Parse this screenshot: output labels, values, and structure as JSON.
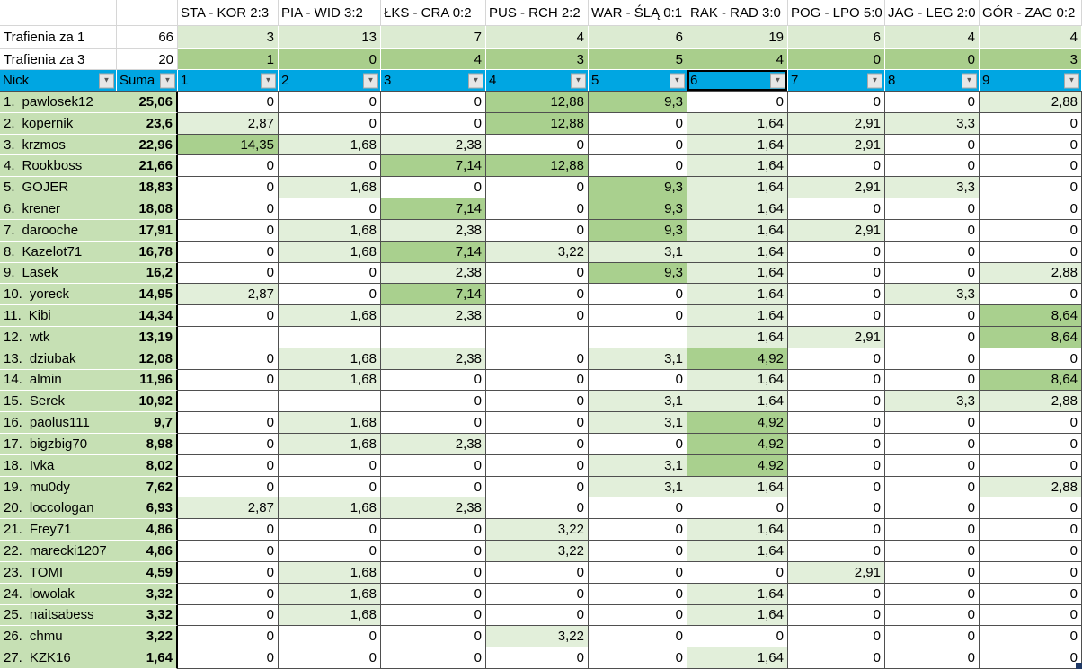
{
  "summary": {
    "hits1_label": "Trafienia za 1",
    "hits1_total": "66",
    "hits3_label": "Trafienia za 3",
    "hits3_total": "20"
  },
  "matches": [
    {
      "label": "STA - KOR 2:3",
      "hits1": "3",
      "hits3": "1"
    },
    {
      "label": "PIA - WID 3:2",
      "hits1": "13",
      "hits3": "0"
    },
    {
      "label": "ŁKS - CRA 0:2",
      "hits1": "7",
      "hits3": "4"
    },
    {
      "label": "PUS - RCH 2:2",
      "hits1": "4",
      "hits3": "3"
    },
    {
      "label": "WAR - ŚLĄ 0:1",
      "hits1": "6",
      "hits3": "5"
    },
    {
      "label": "RAK - RAD 3:0",
      "hits1": "19",
      "hits3": "4"
    },
    {
      "label": "POG - LPO 5:0",
      "hits1": "6",
      "hits3": "0"
    },
    {
      "label": "JAG - LEG 2:0",
      "hits1": "4",
      "hits3": "0"
    },
    {
      "label": "GÓR - ZAG 0:2",
      "hits1": "4",
      "hits3": "3"
    }
  ],
  "filter": {
    "nick_label": "Nick",
    "suma_label": "Suma",
    "columns": [
      "1",
      "2",
      "3",
      "4",
      "5",
      "6",
      "7",
      "8",
      "9"
    ],
    "selected_column": "6",
    "dropdown_glyph": "▼"
  },
  "players": [
    {
      "rank": "1.",
      "nick": "pawlosek12",
      "suma": "25,06",
      "scores": [
        "0",
        "0",
        "0",
        "12,88",
        "9,3",
        "0",
        "0",
        "0",
        "2,88"
      ]
    },
    {
      "rank": "2.",
      "nick": "kopernik",
      "suma": "23,6",
      "scores": [
        "2,87",
        "0",
        "0",
        "12,88",
        "0",
        "1,64",
        "2,91",
        "3,3",
        "0"
      ]
    },
    {
      "rank": "3.",
      "nick": "krzmos",
      "suma": "22,96",
      "scores": [
        "14,35",
        "1,68",
        "2,38",
        "0",
        "0",
        "1,64",
        "2,91",
        "0",
        "0"
      ]
    },
    {
      "rank": "4.",
      "nick": "Rookboss",
      "suma": "21,66",
      "scores": [
        "0",
        "0",
        "7,14",
        "12,88",
        "0",
        "1,64",
        "0",
        "0",
        "0"
      ]
    },
    {
      "rank": "5.",
      "nick": "GOJER",
      "suma": "18,83",
      "scores": [
        "0",
        "1,68",
        "0",
        "0",
        "9,3",
        "1,64",
        "2,91",
        "3,3",
        "0"
      ]
    },
    {
      "rank": "6.",
      "nick": "krener",
      "suma": "18,08",
      "scores": [
        "0",
        "0",
        "7,14",
        "0",
        "9,3",
        "1,64",
        "0",
        "0",
        "0"
      ]
    },
    {
      "rank": "7.",
      "nick": "darooche",
      "suma": "17,91",
      "scores": [
        "0",
        "1,68",
        "2,38",
        "0",
        "9,3",
        "1,64",
        "2,91",
        "0",
        "0"
      ]
    },
    {
      "rank": "8.",
      "nick": "Kazelot71",
      "suma": "16,78",
      "scores": [
        "0",
        "1,68",
        "7,14",
        "3,22",
        "3,1",
        "1,64",
        "0",
        "0",
        "0"
      ]
    },
    {
      "rank": "9.",
      "nick": "Lasek",
      "suma": "16,2",
      "scores": [
        "0",
        "0",
        "2,38",
        "0",
        "9,3",
        "1,64",
        "0",
        "0",
        "2,88"
      ]
    },
    {
      "rank": "10.",
      "nick": "yoreck",
      "suma": "14,95",
      "scores": [
        "2,87",
        "0",
        "7,14",
        "0",
        "0",
        "1,64",
        "0",
        "3,3",
        "0"
      ]
    },
    {
      "rank": "11.",
      "nick": "Kibi",
      "suma": "14,34",
      "scores": [
        "0",
        "1,68",
        "2,38",
        "0",
        "0",
        "1,64",
        "0",
        "0",
        "8,64"
      ]
    },
    {
      "rank": "12.",
      "nick": "wtk",
      "suma": "13,19",
      "scores": [
        "",
        "",
        "",
        "",
        "",
        "1,64",
        "2,91",
        "0",
        "8,64"
      ]
    },
    {
      "rank": "13.",
      "nick": "dziubak",
      "suma": "12,08",
      "scores": [
        "0",
        "1,68",
        "2,38",
        "0",
        "3,1",
        "4,92",
        "0",
        "0",
        "0"
      ]
    },
    {
      "rank": "14.",
      "nick": "almin",
      "suma": "11,96",
      "scores": [
        "0",
        "1,68",
        "0",
        "0",
        "0",
        "1,64",
        "0",
        "0",
        "8,64"
      ]
    },
    {
      "rank": "15.",
      "nick": "Serek",
      "suma": "10,92",
      "scores": [
        "",
        "",
        "0",
        "0",
        "3,1",
        "1,64",
        "0",
        "3,3",
        "2,88"
      ]
    },
    {
      "rank": "16.",
      "nick": "paolus111",
      "suma": "9,7",
      "scores": [
        "0",
        "1,68",
        "0",
        "0",
        "3,1",
        "4,92",
        "0",
        "0",
        "0"
      ]
    },
    {
      "rank": "17.",
      "nick": "bigzbig70",
      "suma": "8,98",
      "scores": [
        "0",
        "1,68",
        "2,38",
        "0",
        "0",
        "4,92",
        "0",
        "0",
        "0"
      ]
    },
    {
      "rank": "18.",
      "nick": "Ivka",
      "suma": "8,02",
      "scores": [
        "0",
        "0",
        "0",
        "0",
        "3,1",
        "4,92",
        "0",
        "0",
        "0"
      ]
    },
    {
      "rank": "19.",
      "nick": "mu0dy",
      "suma": "7,62",
      "scores": [
        "0",
        "0",
        "0",
        "0",
        "3,1",
        "1,64",
        "0",
        "0",
        "2,88"
      ]
    },
    {
      "rank": "20.",
      "nick": "loccologan",
      "suma": "6,93",
      "scores": [
        "2,87",
        "1,68",
        "2,38",
        "0",
        "0",
        "0",
        "0",
        "0",
        "0"
      ]
    },
    {
      "rank": "21.",
      "nick": "Frey71",
      "suma": "4,86",
      "scores": [
        "0",
        "0",
        "0",
        "3,22",
        "0",
        "1,64",
        "0",
        "0",
        "0"
      ]
    },
    {
      "rank": "22.",
      "nick": "marecki1207",
      "suma": "4,86",
      "scores": [
        "0",
        "0",
        "0",
        "3,22",
        "0",
        "1,64",
        "0",
        "0",
        "0"
      ]
    },
    {
      "rank": "23.",
      "nick": "TOMI",
      "suma": "4,59",
      "scores": [
        "0",
        "1,68",
        "0",
        "0",
        "0",
        "0",
        "2,91",
        "0",
        "0"
      ]
    },
    {
      "rank": "24.",
      "nick": "lowolak",
      "suma": "3,32",
      "scores": [
        "0",
        "1,68",
        "0",
        "0",
        "0",
        "1,64",
        "0",
        "0",
        "0"
      ]
    },
    {
      "rank": "25.",
      "nick": "naitsabess",
      "suma": "3,32",
      "scores": [
        "0",
        "1,68",
        "0",
        "0",
        "0",
        "1,64",
        "0",
        "0",
        "0"
      ]
    },
    {
      "rank": "26.",
      "nick": "chmu",
      "suma": "3,22",
      "scores": [
        "0",
        "0",
        "0",
        "3,22",
        "0",
        "0",
        "0",
        "0",
        "0"
      ]
    },
    {
      "rank": "27.",
      "nick": "KZK16",
      "suma": "1,64",
      "scores": [
        "0",
        "0",
        "0",
        "0",
        "0",
        "1,64",
        "0",
        "0",
        "0"
      ]
    }
  ],
  "colors": {
    "filter_header_blue": "#00a6e2",
    "name_column_green": "#c6e0b4",
    "hits1_row_green": "#dcebd2",
    "hits3_row_green": "#a9ce8c",
    "cell_low_green": "#e2efda",
    "cell_high_green": "#a9d08e",
    "selection_border": "#000000",
    "fill_handle_navy": "#1f3864"
  }
}
